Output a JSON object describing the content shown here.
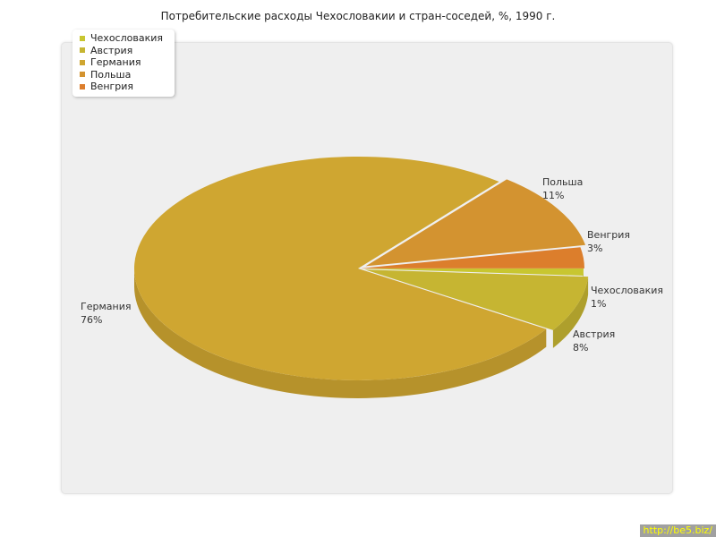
{
  "chart_data": {
    "type": "pie",
    "title": "Потребительские расходы Чехословакии и стран-соседей, %, 1990 г.",
    "slices": [
      {
        "name": "Чехословакия",
        "value": 1,
        "label": "1%",
        "color": "#c8c630"
      },
      {
        "name": "Австрия",
        "value": 8,
        "label": "8%",
        "color": "#c6b532"
      },
      {
        "name": "Германия",
        "value": 76,
        "label": "76%",
        "color": "#cfa631"
      },
      {
        "name": "Польша",
        "value": 11,
        "label": "11%",
        "color": "#d39330"
      },
      {
        "name": "Венгрия",
        "value": 3,
        "label": "3%",
        "color": "#dc7e2c"
      }
    ],
    "legend_position": "top-left",
    "style": "3d-exploded"
  },
  "watermark": "http://be5.biz/"
}
